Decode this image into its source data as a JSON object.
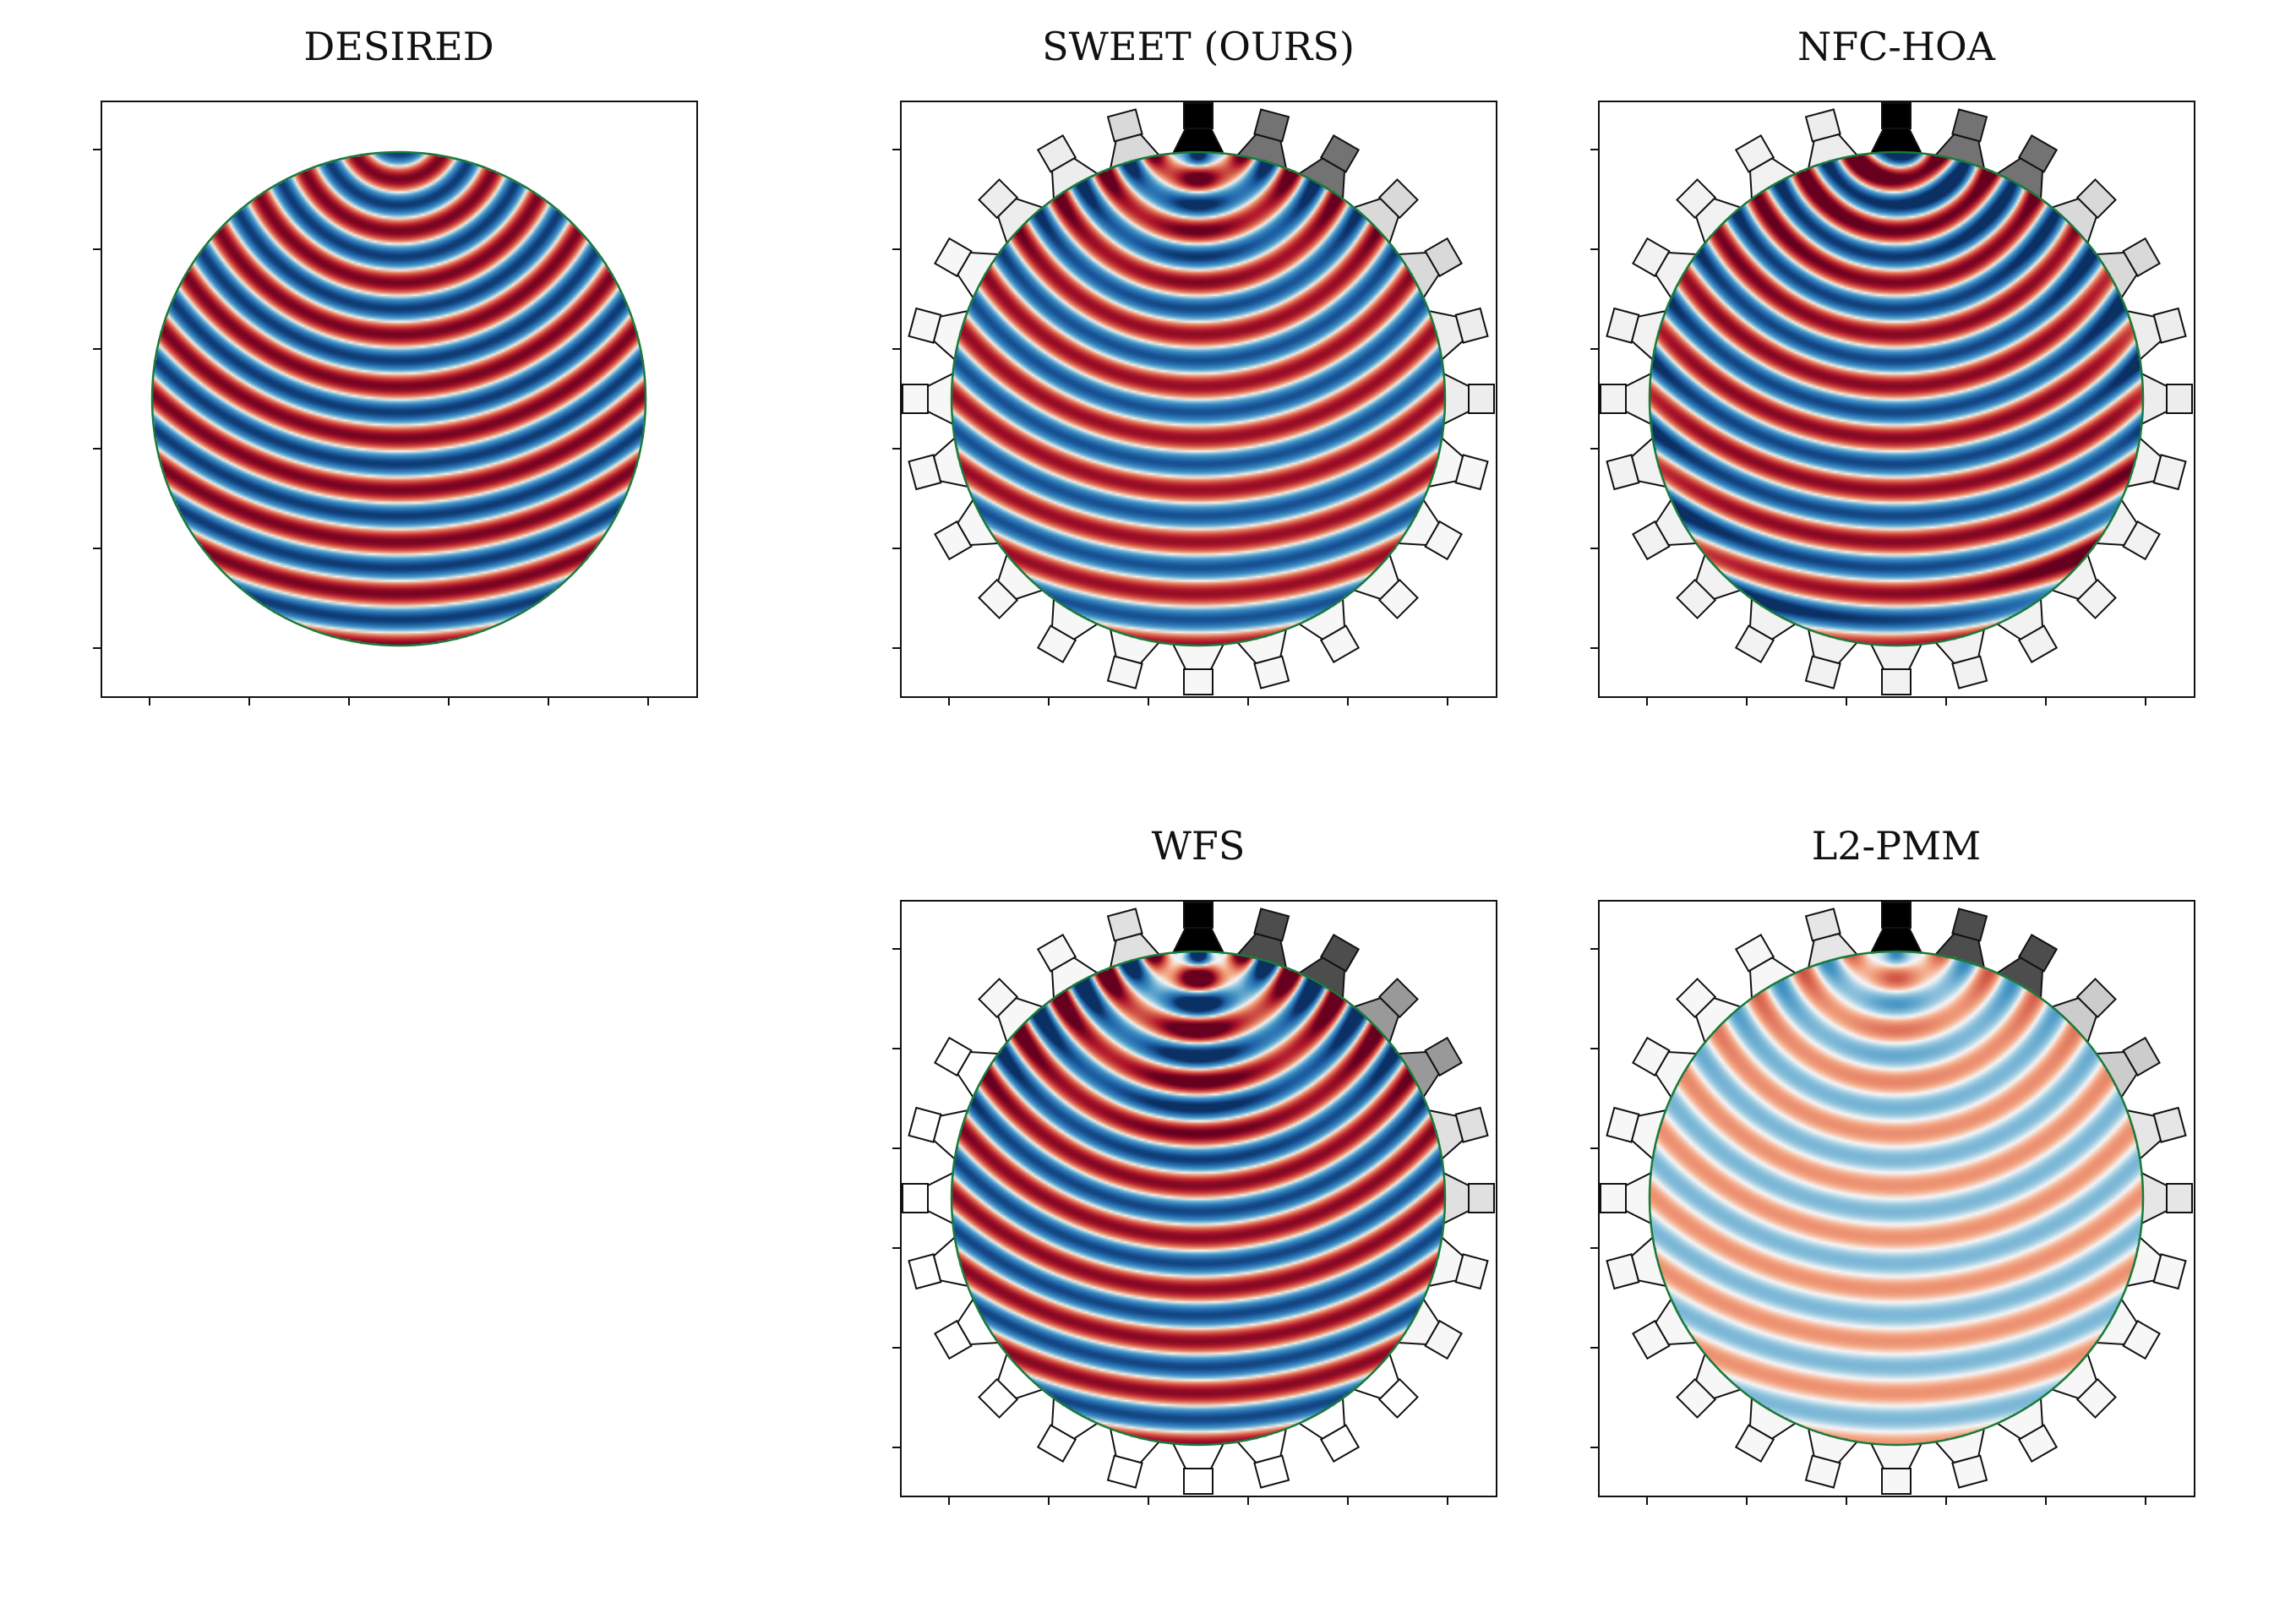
{
  "figure": {
    "panels": [
      {
        "id": "desired",
        "title": "DESIRED",
        "show_speakers": false,
        "amplitude": 1.0,
        "mode": "plane"
      },
      {
        "id": "sweet",
        "title": "SWEET (OURS)",
        "show_speakers": true,
        "amplitude": 1.0,
        "mode": "sweet"
      },
      {
        "id": "nfc-hoa",
        "title": "NFC-HOA",
        "show_speakers": true,
        "amplitude": 1.0,
        "mode": "hoa"
      },
      {
        "id": "wfs",
        "title": "WFS",
        "show_speakers": true,
        "amplitude": 1.0,
        "mode": "wfs"
      },
      {
        "id": "l2-pmm",
        "title": "L2-PMM",
        "show_speakers": true,
        "amplitude": 0.6,
        "mode": "pmm"
      }
    ],
    "colormap": "RdBu",
    "region_outline_color": "#1a7a3a",
    "speaker_count": 24,
    "speaker_shades": {
      "sweet": [
        0.0,
        0.45,
        0.45,
        0.85,
        0.85,
        0.93,
        0.93,
        0.97,
        0.97,
        0.97,
        0.97,
        0.97,
        0.97,
        0.97,
        0.97,
        0.97,
        0.97,
        0.97,
        0.97,
        0.97,
        0.97,
        0.93,
        0.93,
        0.85
      ],
      "nfc-hoa": [
        0.0,
        0.45,
        0.45,
        0.85,
        0.85,
        0.93,
        0.93,
        0.95,
        0.95,
        0.95,
        0.95,
        0.95,
        0.95,
        0.95,
        0.95,
        0.95,
        0.95,
        0.95,
        0.95,
        0.95,
        0.95,
        0.95,
        0.95,
        0.93
      ],
      "wfs": [
        0.0,
        0.3,
        0.3,
        0.6,
        0.6,
        0.88,
        0.88,
        0.97,
        0.97,
        1.0,
        1.0,
        1.0,
        1.0,
        1.0,
        1.0,
        1.0,
        1.0,
        1.0,
        1.0,
        1.0,
        1.0,
        0.97,
        0.97,
        0.88
      ],
      "l2-pmm": [
        0.0,
        0.3,
        0.3,
        0.8,
        0.8,
        0.9,
        0.9,
        0.97,
        0.97,
        0.97,
        0.97,
        0.97,
        0.97,
        0.97,
        0.97,
        0.97,
        0.97,
        0.97,
        0.97,
        0.97,
        0.97,
        0.97,
        0.97,
        0.9
      ]
    }
  }
}
